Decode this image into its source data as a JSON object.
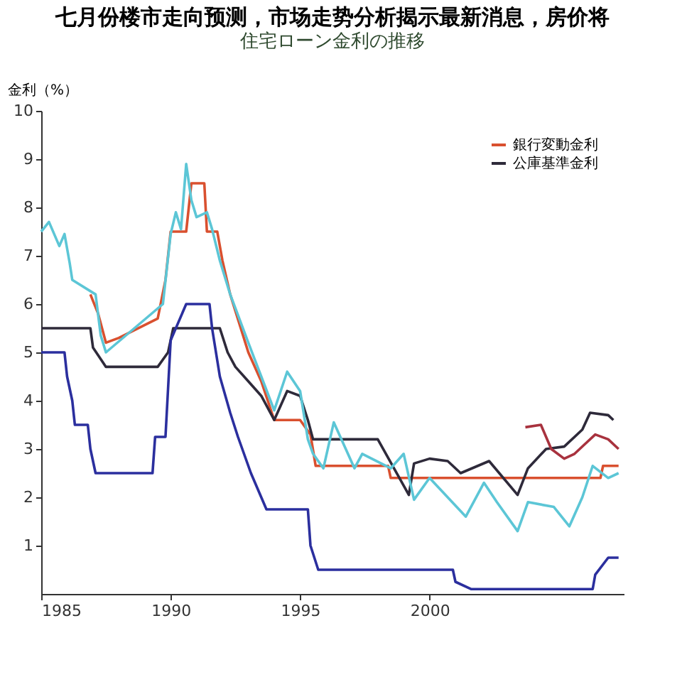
{
  "chart_data": {
    "type": "line",
    "title": "七月份楼市走向预测，市场走势分析揭示最新消息，房价将",
    "subtitle": "住宅ローン金利の推移",
    "ylabel": "金利（%）",
    "xlim": [
      1985,
      2007.5
    ],
    "xticks": [
      1985,
      1990,
      1995,
      2000
    ],
    "ylim": [
      0,
      10
    ],
    "yticks": [
      1,
      2,
      3,
      4,
      5,
      6,
      7,
      8,
      9,
      10
    ],
    "grid": false,
    "legend": "top right",
    "marker": "none",
    "line_style": "solid",
    "series": [
      {
        "name": "銀行変動金利",
        "color": "#d9502f",
        "x": [
          1986.9,
          1987.2,
          1987.5,
          1988,
          1989.5,
          1989.8,
          1990,
          1990.6,
          1990.8,
          1991.3,
          1991.4,
          1991.8,
          1992,
          1992.3,
          1993,
          1993.5,
          1994,
          1995,
          1995.4,
          1995.6,
          1998.4,
          1998.5,
          2006.6,
          2006.7,
          2007.3
        ],
        "values": [
          6.2,
          5.8,
          5.2,
          5.3,
          5.7,
          6.5,
          7.5,
          7.5,
          8.5,
          8.5,
          7.5,
          7.5,
          6.9,
          6.2,
          5.0,
          4.4,
          3.6,
          3.6,
          3.3,
          2.65,
          2.65,
          2.4,
          2.4,
          2.65,
          2.65
        ]
      },
      {
        "name": "公庫基準金利",
        "color": "#2e2a3a",
        "x": [
          1985,
          1986.9,
          1987,
          1987.5,
          1989.5,
          1989.9,
          1990.1,
          1991.9,
          1992.2,
          1992.5,
          1993,
          1993.5,
          1994,
          1994.5,
          1995,
          1995.3,
          1995.5,
          1998,
          1999.2,
          1999.4,
          2000,
          2000.7,
          2001.2,
          2002.3,
          2003.4,
          2003.8,
          2004.5,
          2005.2,
          2005.9,
          2006.2,
          2006.9,
          2007.1
        ],
        "values": [
          5.5,
          5.5,
          5.1,
          4.7,
          4.7,
          5.0,
          5.5,
          5.5,
          5.0,
          4.7,
          4.4,
          4.1,
          3.6,
          4.2,
          4.1,
          3.6,
          3.2,
          3.2,
          2.05,
          2.7,
          2.8,
          2.75,
          2.5,
          2.75,
          2.05,
          2.6,
          3.0,
          3.05,
          3.4,
          3.75,
          3.7,
          3.6
        ]
      },
      {
        "color": "#5cc6d6",
        "x": [
          1985,
          1985.3,
          1985.7,
          1985.9,
          1986.1,
          1986.2,
          1987.1,
          1987.3,
          1987.5,
          1989.7,
          1990,
          1990.2,
          1990.4,
          1990.6,
          1990.8,
          1991,
          1991.4,
          1991.6,
          1991.9,
          1992.3,
          1993,
          1993.5,
          1994,
          1994.5,
          1995,
          1995.3,
          1995.5,
          1995.9,
          1996.3,
          1997.1,
          1997.4,
          1998.5,
          1999,
          1999.4,
          2000,
          2001.4,
          2002.1,
          2002.6,
          2003.4,
          2003.8,
          2004.8,
          2005.4,
          2005.9,
          2006.3,
          2006.9,
          2007.3
        ],
        "values": [
          7.5,
          7.7,
          7.2,
          7.45,
          6.85,
          6.5,
          6.2,
          5.35,
          5.0,
          6.0,
          7.45,
          7.9,
          7.55,
          8.9,
          8.15,
          7.8,
          7.9,
          7.55,
          6.9,
          6.2,
          5.2,
          4.5,
          3.8,
          4.6,
          4.2,
          3.2,
          2.9,
          2.6,
          3.55,
          2.6,
          2.9,
          2.6,
          2.9,
          1.95,
          2.4,
          1.6,
          2.3,
          1.9,
          1.3,
          1.9,
          1.8,
          1.4,
          2.0,
          2.65,
          2.4,
          2.5
        ]
      },
      {
        "color": "#2b2f9e",
        "x": [
          1985,
          1985.9,
          1986,
          1986.2,
          1986.3,
          1986.8,
          1986.9,
          1987.1,
          1989.3,
          1989.4,
          1989.8,
          1989.9,
          1990,
          1990.6,
          1991.5,
          1991.6,
          1991.9,
          1992.3,
          1992.6,
          1993.1,
          1993.7,
          1995.3,
          1995.4,
          1995.7,
          2000.9,
          2001,
          2001.6,
          2006.3,
          2006.4,
          2006.9,
          2007.3
        ],
        "values": [
          5.0,
          5.0,
          4.5,
          4.0,
          3.5,
          3.5,
          3.0,
          2.5,
          2.5,
          3.25,
          3.25,
          4.25,
          5.25,
          6.0,
          6.0,
          5.5,
          4.5,
          3.75,
          3.25,
          2.5,
          1.75,
          1.75,
          1.0,
          0.5,
          0.5,
          0.25,
          0.1,
          0.1,
          0.4,
          0.75,
          0.75
        ]
      },
      {
        "color": "#a8323e",
        "x": [
          2003.7,
          2004.3,
          2004.7,
          2005.2,
          2005.6,
          2006.1,
          2006.4,
          2006.9,
          2007.3
        ],
        "values": [
          3.45,
          3.5,
          3.0,
          2.8,
          2.9,
          3.15,
          3.3,
          3.2,
          3.0
        ]
      }
    ]
  }
}
